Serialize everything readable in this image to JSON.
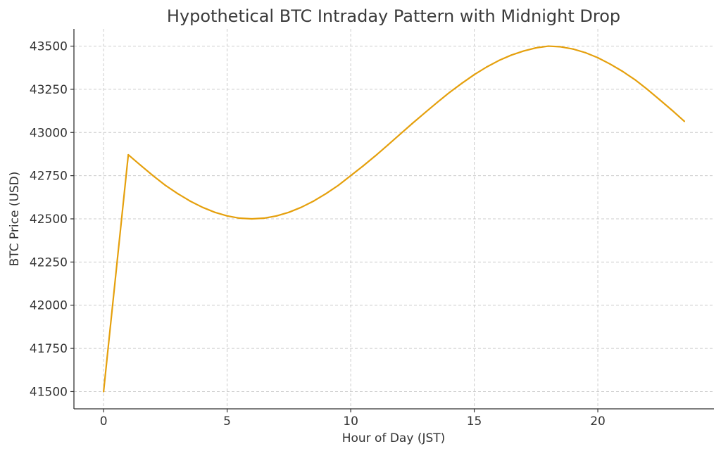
{
  "chart_data": {
    "type": "line",
    "title": "Hypothetical BTC Intraday Pattern with Midnight Drop",
    "xlabel": "Hour of Day (JST)",
    "ylabel": "BTC Price (USD)",
    "xlim": [
      -1.2,
      24.7
    ],
    "ylim": [
      41400,
      43600
    ],
    "xticks": [
      0,
      5,
      10,
      15,
      20
    ],
    "yticks": [
      41500,
      41750,
      42000,
      42250,
      42500,
      42750,
      43000,
      43250,
      43500
    ],
    "grid": true,
    "legend": "none",
    "colors": {
      "line": "#e5a00d",
      "grid": "#cccccc",
      "axis": "#333333"
    },
    "series": [
      {
        "x": [
          0,
          1,
          1.5,
          2,
          2.5,
          3,
          3.5,
          4,
          4.5,
          5,
          5.5,
          6,
          6.5,
          7,
          7.5,
          8,
          8.5,
          9,
          9.5,
          10,
          10.5,
          11,
          11.5,
          12,
          12.5,
          13,
          13.5,
          14,
          14.5,
          15,
          15.5,
          16,
          16.5,
          17,
          17.5,
          18,
          18.5,
          19,
          19.5,
          20,
          20.5,
          21,
          21.5,
          22,
          22.5,
          23,
          23.5
        ],
        "y": [
          41500,
          42871,
          42810,
          42750,
          42694,
          42646,
          42603,
          42567,
          42538,
          42517,
          42504,
          42500,
          42504,
          42517,
          42538,
          42567,
          42603,
          42646,
          42694,
          42750,
          42806,
          42865,
          42927,
          42990,
          43053,
          43114,
          43174,
          43232,
          43285,
          43335,
          43379,
          43417,
          43448,
          43472,
          43490,
          43500,
          43496,
          43483,
          43462,
          43433,
          43396,
          43354,
          43306,
          43250,
          43190,
          43129,
          43065
        ]
      }
    ]
  }
}
